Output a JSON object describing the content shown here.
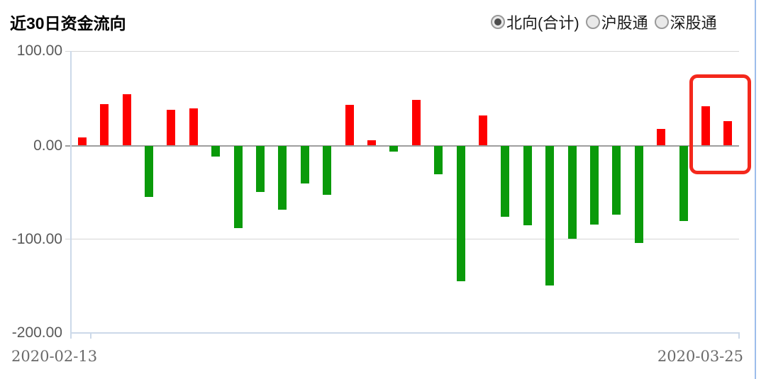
{
  "header": {
    "title": "近30日资金流向",
    "radios": [
      {
        "label": "北向(合计)",
        "selected": true
      },
      {
        "label": "沪股通",
        "selected": false
      },
      {
        "label": "深股通",
        "selected": false
      }
    ]
  },
  "chart_data": {
    "type": "bar",
    "title": "近30日资金流向",
    "y_tick_labels": [
      "100.00",
      "0.00",
      "-100.00",
      "-200.00"
    ],
    "y_ticks": [
      100,
      0,
      -100,
      -200
    ],
    "ylim": [
      -200,
      100
    ],
    "x_tick_labels": [
      "2020-02-13",
      "2020-03-25"
    ],
    "x_first_label": "2020-02-13",
    "x_last_label": "2020-03-25",
    "values": [
      8,
      43.5,
      54,
      -54.5,
      37.5,
      39,
      -11.5,
      -88,
      -49.5,
      -68,
      -40,
      -52,
      42.5,
      5,
      -6.5,
      48,
      -30.5,
      -144.5,
      31.5,
      -76,
      -84.5,
      -149,
      -99,
      -84,
      -73,
      -103.5,
      17,
      -80.5,
      41,
      25.5
    ],
    "positive_color": "#fe0000",
    "negative_color": "#0a9a0a",
    "highlight_last_n": 2,
    "highlight_color": "#f4281c",
    "grid": true,
    "legend_position": "none"
  },
  "colors": {
    "zero_line": "#9e9e9e",
    "grid_line": "#d6d6d6",
    "axis_line": "#ccd9e9",
    "panel_border": "#9cbdeb",
    "axis_label": "#595959",
    "date_label": "#6a6a6a"
  }
}
